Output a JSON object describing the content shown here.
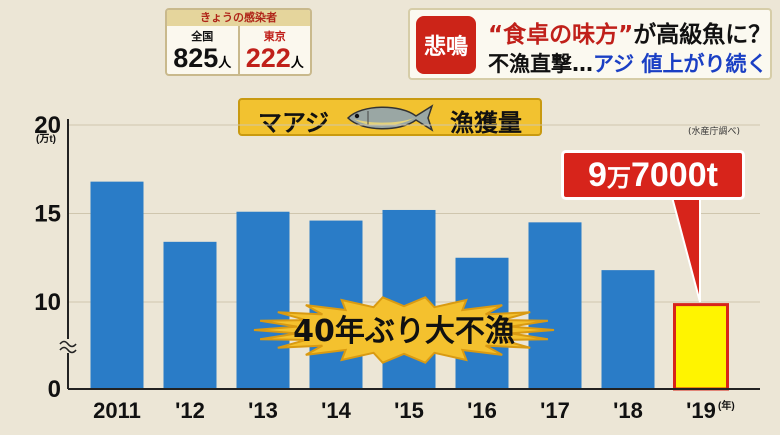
{
  "counter": {
    "header": "きょうの感染者",
    "national": {
      "label": "全国",
      "value": "825",
      "unit": "人"
    },
    "tokyo": {
      "label": "東京",
      "value": "222",
      "unit": "人"
    }
  },
  "headline": {
    "tag": "悲鳴",
    "line1_quote": "“食卓の味方”",
    "line1_rest": "が高級魚に？",
    "line2_part1": "不漁直撃…",
    "line2_part2": "アジ 値上がり続く"
  },
  "chart_title": {
    "left": "マアジ",
    "right": "漁獲量"
  },
  "source_note": "(水産庁調べ)",
  "callout": {
    "num1": "9",
    "unit1": "万",
    "num2": "7000",
    "unit2": "t"
  },
  "burst_text": "40年ぶり大不漁",
  "chart_data": {
    "type": "bar",
    "categories": [
      "2011",
      "'12",
      "'13",
      "'14",
      "'15",
      "'16",
      "'17",
      "'18",
      "'19"
    ],
    "values": [
      16.8,
      13.4,
      15.1,
      14.6,
      15.2,
      12.5,
      14.5,
      11.8,
      9.7
    ],
    "y_unit": "(万t)",
    "x_unit": "(年)",
    "y_ticks": [
      0,
      10,
      15,
      20
    ],
    "y_axis_break": true,
    "highlight_last": true,
    "colors": {
      "bar": "#2a7cc7",
      "highlight": "#fff400",
      "highlight_border": "#d7241b"
    }
  }
}
